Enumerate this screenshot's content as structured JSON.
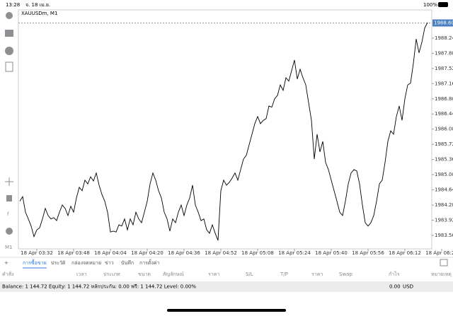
{
  "status_bar": {
    "time": "13:28",
    "date": "จ. 18 เม.ย.",
    "battery": "100%"
  },
  "chart": {
    "type": "line",
    "symbol": "XAUUSDm, M1",
    "color": "#000000",
    "ylim": [
      1983.24,
      1988.91
    ],
    "yticks": [
      {
        "value": 1988.24,
        "label": "1988.240"
      },
      {
        "value": 1987.88,
        "label": "1987.880"
      },
      {
        "value": 1987.52,
        "label": "1987.520"
      },
      {
        "value": 1987.16,
        "label": "1987.160"
      },
      {
        "value": 1986.8,
        "label": "1986.800"
      },
      {
        "value": 1986.44,
        "label": "1986.440"
      },
      {
        "value": 1986.08,
        "label": "1986.080"
      },
      {
        "value": 1985.72,
        "label": "1985.720"
      },
      {
        "value": 1985.36,
        "label": "1985.360"
      },
      {
        "value": 1985,
        "label": "1985.000"
      },
      {
        "value": 1984.64,
        "label": "1984.640"
      },
      {
        "value": 1984.28,
        "label": "1984.280"
      },
      {
        "value": 1983.92,
        "label": "1983.920"
      },
      {
        "value": 1983.56,
        "label": "1983.560"
      }
    ],
    "current_price": {
      "value": 1988.6,
      "label": "1988.600"
    },
    "xticks": [
      "18 Apr 03:32",
      "18 Apr 03:48",
      "18 Apr 04:04",
      "18 Apr 04:20",
      "18 Apr 04:36",
      "18 Apr 04:52",
      "18 Apr 05:08",
      "18 Apr 05:24",
      "18 Apr 05:40",
      "18 Apr 05:56",
      "18 Apr 06:12",
      "18 Apr 06:28"
    ],
    "values": [
      1984.37,
      1984.48,
      1984.11,
      1983.95,
      1983.78,
      1983.53,
      1983.69,
      1983.74,
      1983.95,
      1984.2,
      1984.03,
      1983.95,
      1983.98,
      1983.91,
      1984.11,
      1984.28,
      1984.2,
      1984.03,
      1984.25,
      1984.11,
      1984.45,
      1984.7,
      1984.62,
      1984.87,
      1984.78,
      1984.95,
      1984.85,
      1985.04,
      1984.75,
      1984.53,
      1984.37,
      1984.11,
      1983.64,
      1983.66,
      1983.64,
      1983.81,
      1983.78,
      1983.95,
      1983.69,
      1983.95,
      1983.81,
      1984.11,
      1983.95,
      1983.86,
      1984.11,
      1984.37,
      1984.78,
      1985.04,
      1984.87,
      1984.62,
      1984.45,
      1984.11,
      1983.95,
      1983.66,
      1983.95,
      1983.86,
      1984.11,
      1984.28,
      1984.03,
      1984.28,
      1984.45,
      1984.75,
      1984.28,
      1984.11,
      1983.91,
      1983.95,
      1983.69,
      1983.61,
      1983.81,
      1983.61,
      1983.44,
      1984.62,
      1984.87,
      1984.75,
      1984.82,
      1984.92,
      1985.04,
      1984.87,
      1985.12,
      1985.37,
      1985.46,
      1985.71,
      1985.96,
      1986.21,
      1986.38,
      1986.21,
      1986.29,
      1986.33,
      1986.63,
      1986.6,
      1986.8,
      1986.88,
      1987.13,
      1987.0,
      1987.3,
      1987.22,
      1987.47,
      1987.72,
      1987.27,
      1987.5,
      1987.3,
      1987.13,
      1986.71,
      1986.29,
      1985.37,
      1985.96,
      1985.54,
      1985.79,
      1985.29,
      1985.12,
      1984.87,
      1984.62,
      1984.37,
      1984.11,
      1984.03,
      1984.37,
      1984.78,
      1985.04,
      1985.12,
      1985.09,
      1984.78,
      1984.28,
      1983.86,
      1983.78,
      1983.86,
      1984.03,
      1984.37,
      1984.78,
      1984.87,
      1985.29,
      1985.79,
      1986.04,
      1985.96,
      1986.38,
      1986.63,
      1986.29,
      1986.8,
      1987.13,
      1987.17,
      1987.64,
      1988.22,
      1987.89,
      1988.14,
      1988.48,
      1988.61
    ]
  },
  "tabs": [
    "การซื้อขาย",
    "ประวัติ",
    "กล่องจดหมาย",
    "ข่าว",
    "บันทึก",
    "การตั้งค่า"
  ],
  "columns": [
    "คำสั่ง",
    "เวลา",
    "ประเภท",
    "ขนาด",
    "สัญลักษณ์",
    "ราคา",
    "S/L",
    "T/P",
    "ราคา",
    "Swap",
    "กำไร",
    "หมายเหตุ"
  ],
  "balance": {
    "text": "Balance: 1 144.72 Equity: 1 144.72 หลักประกัน: 0.00 ฟรี: 1 144.72 Level: 0.00%",
    "profit": "0.00",
    "currency": "USD"
  }
}
